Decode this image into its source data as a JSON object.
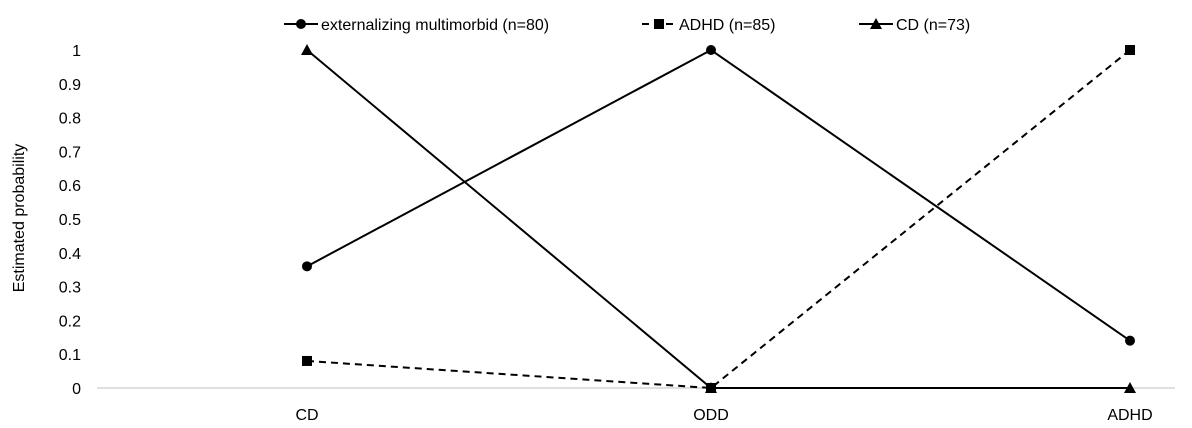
{
  "chart_data": {
    "type": "line",
    "title": "",
    "xlabel": "",
    "ylabel": "Estimated probability",
    "categories": [
      "CD",
      "ODD",
      "ADHD"
    ],
    "ylim": [
      0,
      1
    ],
    "yticks": [
      "0",
      "0.1",
      "0.2",
      "0.3",
      "0.4",
      "0.5",
      "0.6",
      "0.7",
      "0.8",
      "0.9",
      "1"
    ],
    "grid": false,
    "legend_position": "top",
    "series": [
      {
        "name": "externalizing multimorbid (n=80)",
        "marker": "circle",
        "dash": "solid",
        "color": "#000000",
        "values": [
          0.36,
          1.0,
          0.14
        ]
      },
      {
        "name": "ADHD (n=85)",
        "marker": "square",
        "dash": "dashed",
        "color": "#000000",
        "values": [
          0.08,
          0.0,
          1.0
        ]
      },
      {
        "name": "CD (n=73)",
        "marker": "triangle",
        "dash": "solid",
        "color": "#000000",
        "values": [
          1.0,
          0.0,
          0.0
        ]
      }
    ]
  }
}
